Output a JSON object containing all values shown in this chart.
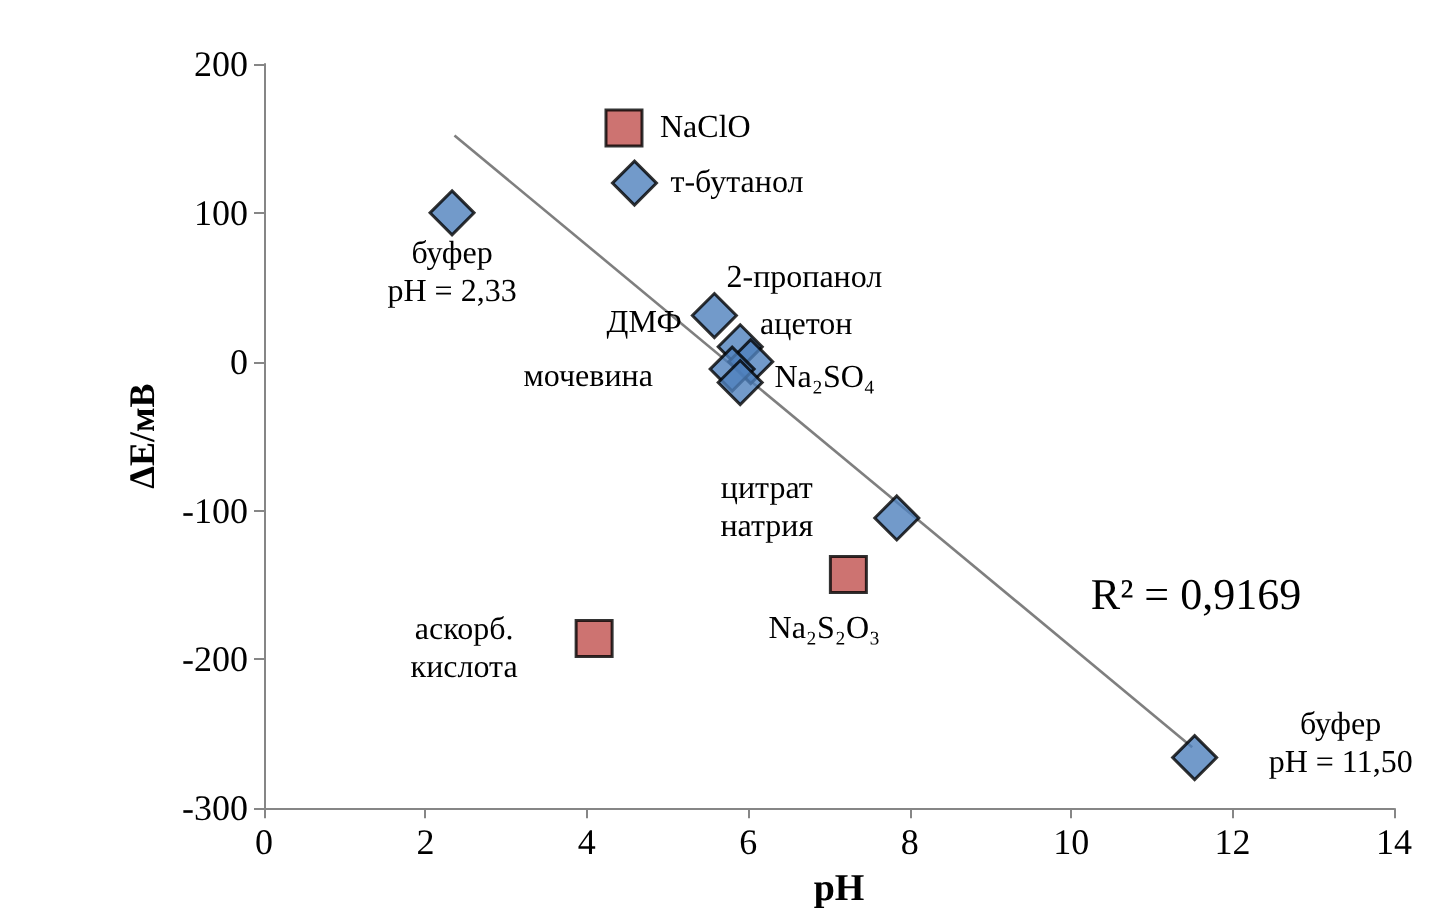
{
  "chart_data": {
    "type": "scatter",
    "xlabel": "pH",
    "ylabel": "ΔE/мВ",
    "xlim": [
      0,
      14
    ],
    "xticks": [
      0,
      2,
      4,
      6,
      8,
      10,
      12,
      14
    ],
    "ylim": [
      -300,
      200
    ],
    "yticks": [
      -300,
      -200,
      -100,
      0,
      100,
      200
    ],
    "grid": false,
    "series": [
      {
        "color": "#4f81bd",
        "marker": "diamond",
        "x": [
          2.33,
          4.59,
          5.58,
          5.9,
          6.03,
          5.8,
          5.9,
          7.84,
          11.53
        ],
        "values": [
          100,
          120,
          31,
          10,
          0,
          -5,
          -14,
          -105,
          -266
        ]
      },
      {
        "color": "#c0504d",
        "marker": "square",
        "x": [
          4.46,
          7.24,
          4.09
        ],
        "values": [
          157,
          -143,
          -186
        ]
      },
      {
        "type": "line",
        "color": "#7f7f7f",
        "marker": "none",
        "x": [
          2.36,
          11.5
        ],
        "values": [
          152,
          -259
        ]
      }
    ],
    "annotations": [
      {
        "text": "NaClO",
        "x": 4.46,
        "y": 157
      },
      {
        "text": "т-бутанол",
        "x": 4.59,
        "y": 120
      },
      {
        "text": "буфер\npH = 2,33",
        "x": 2.33,
        "y": 100
      },
      {
        "text": "2-пропанол",
        "x": 5.58,
        "y": 31
      },
      {
        "text": "ацетон",
        "x": 5.9,
        "y": 10
      },
      {
        "text": "Na₂SO₄",
        "x": 6.03,
        "y": 0
      },
      {
        "text": "ДМФ",
        "x": 5.8,
        "y": -5
      },
      {
        "text": "мочевина",
        "x": 5.9,
        "y": -14
      },
      {
        "text": "цитрат\nнатрия",
        "x": 7.84,
        "y": -105
      },
      {
        "text": "Na₂S₂O₃",
        "x": 7.24,
        "y": -143
      },
      {
        "text": "аскорб.\nкислота",
        "x": 4.09,
        "y": -186
      },
      {
        "text": "буфер\npH = 11,50",
        "x": 11.53,
        "y": -266
      },
      "R² = 0,9169"
    ]
  }
}
